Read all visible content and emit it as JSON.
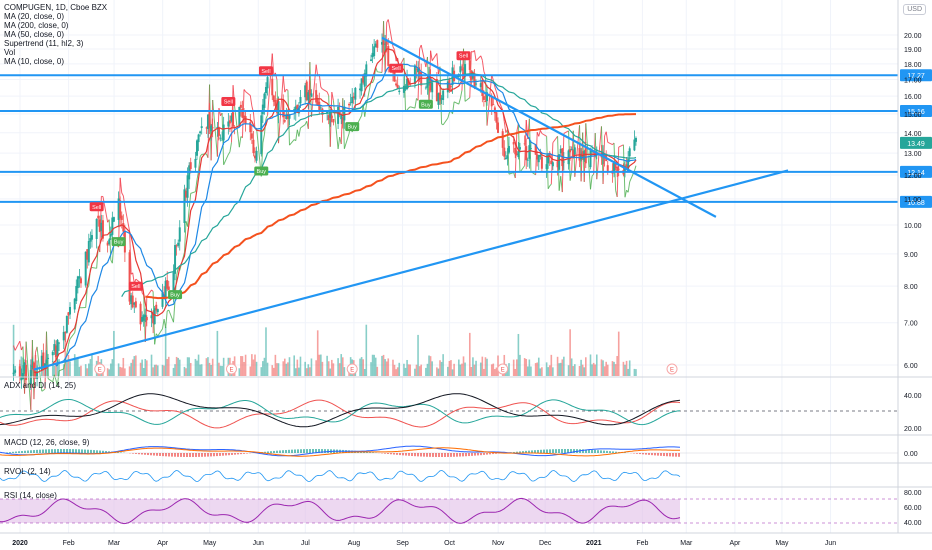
{
  "legend": [
    "COMPUGEN, 1D, Cboe BZX",
    "MA (20, close, 0)",
    "MA (200, close, 0)",
    "MA (50, close, 0)",
    "Supertrend (11, hl2, 3)",
    "Vol",
    "MA (10, close, 0)"
  ],
  "currency": "USD",
  "pane_titles": {
    "adx": "ADX and DI (14, 25)",
    "macd": "MACD (12, 26, close, 9)",
    "rvol": "RVOL (2, 14)",
    "rsi": "RSI (14, close)"
  },
  "colors": {
    "candle_up": "#26a69a",
    "candle_down": "#ef5350",
    "ma10": "#e53935",
    "ma20": "#1e88e5",
    "ma50": "#26a69a",
    "ma200": "#f4511e",
    "supertrend_up": "#4caf50",
    "supertrend_down": "#f23645",
    "trendline": "#2196f3",
    "level_line": "#2196f3",
    "rsi_band": "#e1bee7",
    "rsi_line": "#9c27b0"
  },
  "chart_data": {
    "type": "candlestick",
    "symbol": "COMPUGEN",
    "interval": "1D",
    "exchange": "Cboe BZX",
    "price_axis_ticks": [
      20.0,
      19.0,
      18.0,
      17.0,
      16.0,
      15.0,
      14.0,
      13.0,
      12.0,
      11.0,
      10.0,
      9.0,
      8.0,
      7.0,
      6.0
    ],
    "time_axis_ticks": [
      "2020",
      "Feb",
      "Mar",
      "Apr",
      "May",
      "Jun",
      "Jul",
      "Aug",
      "Sep",
      "Oct",
      "Nov",
      "Dec",
      "2021",
      "Feb",
      "Mar",
      "Apr",
      "May",
      "Jun"
    ],
    "last_price": 13.49,
    "horizontal_levels": [
      17.27,
      15.16,
      12.14,
      10.88
    ],
    "price_path": [
      [
        "2020-01-02",
        5.8
      ],
      [
        "2020-01-15",
        5.9
      ],
      [
        "2020-02-01",
        6.5
      ],
      [
        "2020-02-15",
        8.5
      ],
      [
        "2020-02-24",
        10.3
      ],
      [
        "2020-03-02",
        9.5
      ],
      [
        "2020-03-09",
        11.0
      ],
      [
        "2020-03-16",
        7.8
      ],
      [
        "2020-03-23",
        6.9
      ],
      [
        "2020-04-01",
        7.2
      ],
      [
        "2020-04-12",
        8.3
      ],
      [
        "2020-04-25",
        12.8
      ],
      [
        "2020-05-04",
        14.5
      ],
      [
        "2020-05-15",
        14.0
      ],
      [
        "2020-05-25",
        15.1
      ],
      [
        "2020-06-05",
        13.0
      ],
      [
        "2020-06-12",
        16.8
      ],
      [
        "2020-06-22",
        14.8
      ],
      [
        "2020-07-06",
        16.3
      ],
      [
        "2020-07-20",
        15.0
      ],
      [
        "2020-08-03",
        15.2
      ],
      [
        "2020-08-12",
        17.3
      ],
      [
        "2020-08-24",
        19.5
      ],
      [
        "2020-09-03",
        16.7
      ],
      [
        "2020-09-15",
        17.5
      ],
      [
        "2020-09-30",
        16.0
      ],
      [
        "2020-10-12",
        17.8
      ],
      [
        "2020-10-22",
        17.0
      ],
      [
        "2020-11-02",
        15.5
      ],
      [
        "2020-11-10",
        13.0
      ],
      [
        "2020-11-20",
        13.3
      ],
      [
        "2020-12-03",
        12.6
      ],
      [
        "2020-12-15",
        12.8
      ],
      [
        "2020-12-28",
        13.0
      ],
      [
        "2021-01-12",
        12.7
      ],
      [
        "2021-01-25",
        12.1
      ],
      [
        "2021-02-02",
        13.49
      ]
    ],
    "volume_note": "volume histogram at base of price pane",
    "signals": [
      {
        "date": "2020-02-24",
        "label": "Sell"
      },
      {
        "date": "2020-03-09",
        "label": "Buy"
      },
      {
        "date": "2020-03-20",
        "label": "Sell"
      },
      {
        "date": "2020-04-14",
        "label": "Buy"
      },
      {
        "date": "2020-05-18",
        "label": "Sell"
      },
      {
        "date": "2020-06-08",
        "label": "Buy"
      },
      {
        "date": "2020-06-11",
        "label": "Sell"
      },
      {
        "date": "2020-08-05",
        "label": "Buy"
      },
      {
        "date": "2020-09-02",
        "label": "Sell"
      },
      {
        "date": "2020-09-21",
        "label": "Buy"
      },
      {
        "date": "2020-10-15",
        "label": "Sell"
      }
    ],
    "earnings_markers": [
      "2020-02-26",
      "2020-05-20",
      "2020-08-05",
      "2020-11-09",
      "2021-02-25"
    ],
    "earnings_label": "E",
    "trendlines": [
      {
        "name": "descending",
        "from": [
          "2020-08-24",
          19.8
        ],
        "to": [
          "2021-03-25",
          10.3
        ]
      },
      {
        "name": "ascending",
        "from": [
          "2020-01-15",
          5.9
        ],
        "to": [
          "2021-05-10",
          12.2
        ]
      }
    ],
    "indicator_ticks": {
      "adx": [
        40.0,
        20.0
      ],
      "adx_reference": 25,
      "macd": [
        0.0
      ],
      "rsi": [
        80.0,
        60.0,
        40.0
      ]
    }
  }
}
